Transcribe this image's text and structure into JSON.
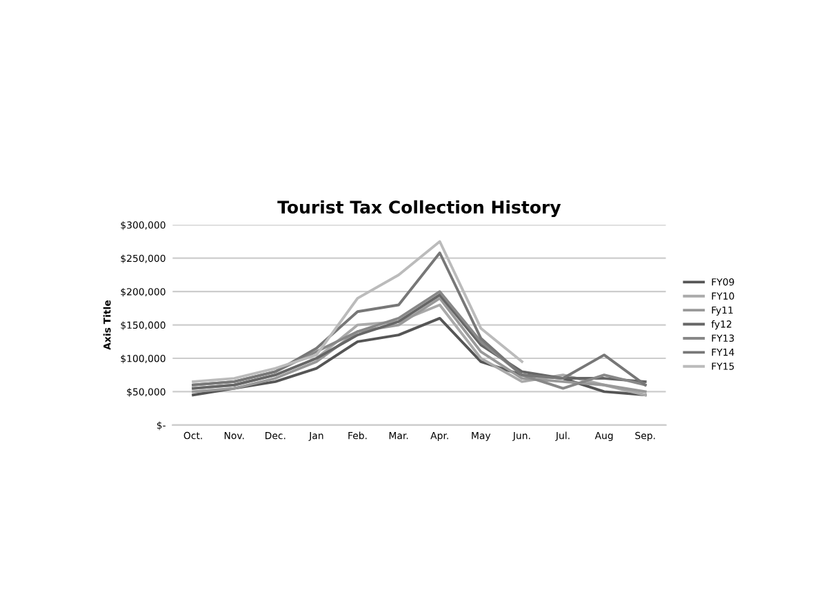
{
  "chart_data": {
    "type": "line",
    "title": "Tourist Tax Collection History",
    "ylabel": "Axis Title",
    "categories": [
      "Oct.",
      "Nov.",
      "Dec.",
      "Jan",
      "Feb.",
      "Mar.",
      "Apr.",
      "May",
      "Jun.",
      "Jul.",
      "Aug",
      "Sep."
    ],
    "series": [
      {
        "name": "FY09",
        "color": "#555555",
        "values": [
          45000,
          55000,
          65000,
          85000,
          125000,
          135000,
          160000,
          95000,
          75000,
          70000,
          50000,
          45000
        ]
      },
      {
        "name": "FY10",
        "color": "#aaaaaa",
        "values": [
          55000,
          60000,
          75000,
          100000,
          150000,
          155000,
          180000,
          100000,
          65000,
          75000,
          60000,
          45000
        ]
      },
      {
        "name": "Fy11",
        "color": "#999999",
        "values": [
          50000,
          55000,
          70000,
          95000,
          140000,
          150000,
          190000,
          110000,
          70000,
          65000,
          60000,
          50000
        ]
      },
      {
        "name": "fy12",
        "color": "#666666",
        "values": [
          55000,
          60000,
          75000,
          100000,
          135000,
          155000,
          195000,
          120000,
          80000,
          70000,
          70000,
          65000
        ]
      },
      {
        "name": "FY13",
        "color": "#888888",
        "values": [
          60000,
          65000,
          80000,
          110000,
          140000,
          160000,
          200000,
          125000,
          75000,
          55000,
          75000,
          60000
        ]
      },
      {
        "name": "FY14",
        "color": "#777777",
        "values": [
          60000,
          65000,
          80000,
          115000,
          170000,
          180000,
          258000,
          130000,
          75000,
          70000,
          105000,
          60000
        ]
      },
      {
        "name": "FY15",
        "color": "#bbbbbb",
        "values": [
          65000,
          70000,
          85000,
          105000,
          190000,
          225000,
          275000,
          145000,
          95000,
          null,
          null,
          null
        ]
      }
    ],
    "ylim": [
      0,
      300000
    ],
    "yticks": [
      {
        "value": 0,
        "label": "$-"
      },
      {
        "value": 50000,
        "label": "$50,000"
      },
      {
        "value": 100000,
        "label": "$100,000"
      },
      {
        "value": 150000,
        "label": "$150,000"
      },
      {
        "value": 200000,
        "label": "$200,000"
      },
      {
        "value": 250000,
        "label": "$250,000"
      },
      {
        "value": 300000,
        "label": "$300,000"
      }
    ],
    "grid": "y",
    "legend": "right",
    "marker": "none",
    "line_style": "solid"
  }
}
